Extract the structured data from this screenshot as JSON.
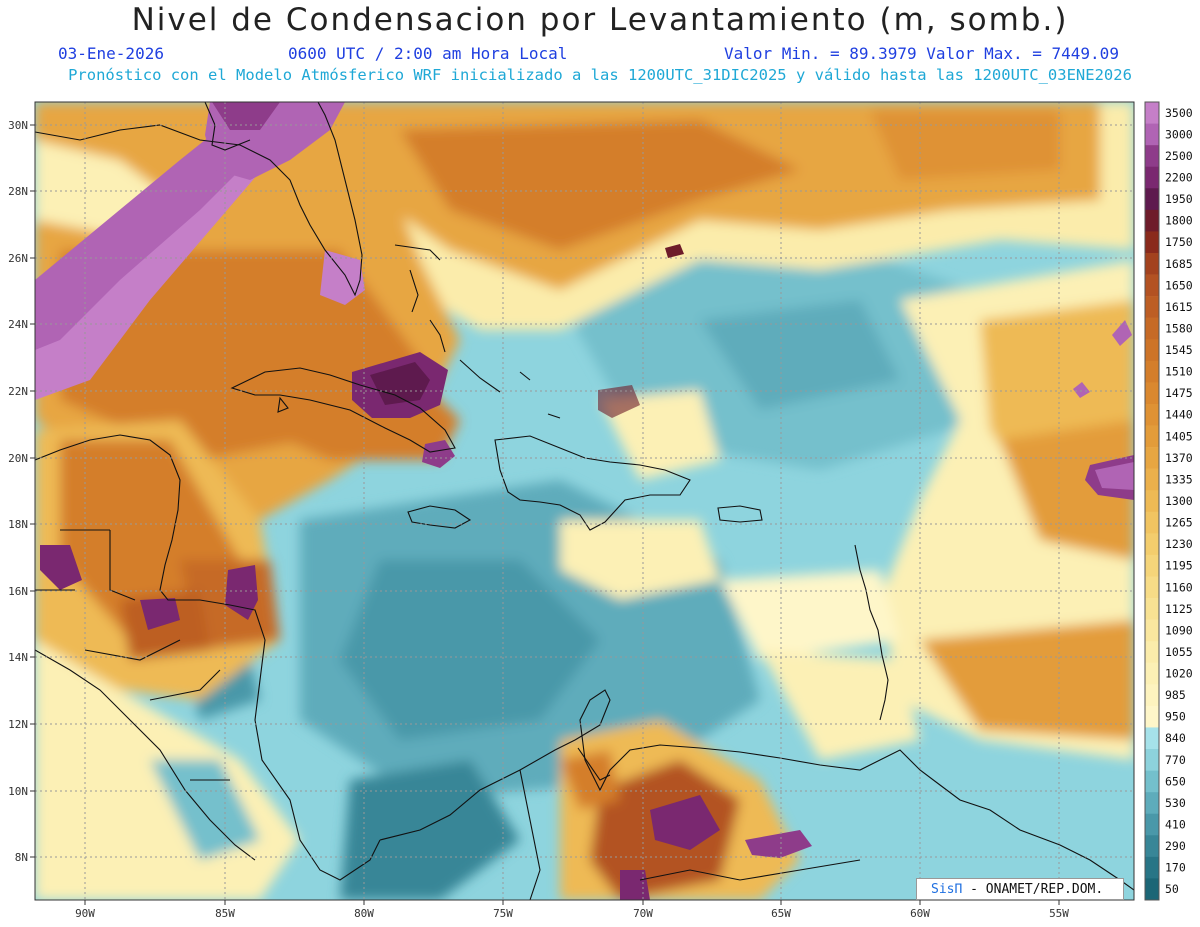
{
  "header": {
    "title": "Nivel de Condensacion por Levantamiento (m, somb.)",
    "date": "03-Ene-2026",
    "time": "0600 UTC / 2:00 am Hora Local",
    "minmax": "Valor Min. = 89.3979  Valor Max. = 7449.09",
    "forecast": "Pronóstico con el Modelo Atmósferico WRF inicializado a las 1200UTC_31DIC2025 y válido hasta las  1200UTC_03ENE2026"
  },
  "map": {
    "lon_labels": [
      "90W",
      "85W",
      "80W",
      "75W",
      "70W",
      "65W",
      "60W",
      "55W"
    ],
    "lat_labels": [
      "30N",
      "28N",
      "26N",
      "24N",
      "22N",
      "20N",
      "18N",
      "16N",
      "14N",
      "12N",
      "10N",
      "8N"
    ]
  },
  "colorbar": {
    "levels": [
      "3500",
      "3000",
      "2500",
      "2200",
      "1950",
      "1800",
      "1750",
      "1685",
      "1650",
      "1615",
      "1580",
      "1545",
      "1510",
      "1475",
      "1440",
      "1405",
      "1370",
      "1335",
      "1300",
      "1265",
      "1230",
      "1195",
      "1160",
      "1125",
      "1090",
      "1055",
      "1020",
      "985",
      "950",
      "840",
      "770",
      "650",
      "530",
      "410",
      "290",
      "170",
      "50"
    ],
    "colors": [
      "#c57fc8",
      "#b064b4",
      "#8e3c8a",
      "#7a2870",
      "#5e1a4e",
      "#6e1c2a",
      "#8a2a1c",
      "#a3421e",
      "#b35222",
      "#bd5e24",
      "#c66a26",
      "#cd7428",
      "#d47e2b",
      "#da882f",
      "#df9234",
      "#e39c3a",
      "#e7a642",
      "#ebb04b",
      "#eeba55",
      "#f1c461",
      "#f3cd6d",
      "#f5d57a",
      "#f7dc87",
      "#f8e293",
      "#fae79f",
      "#fbecab",
      "#fcf0b5",
      "#fdf3bf",
      "#fef6c9",
      "#a6e2ea",
      "#8dd2dc",
      "#74c0cc",
      "#5eacbb",
      "#4a98a9",
      "#388697",
      "#287586",
      "#1c6676"
    ]
  },
  "credit": {
    "brand": "SisΠ",
    "text": "- ONAMET/REP.DOM."
  }
}
